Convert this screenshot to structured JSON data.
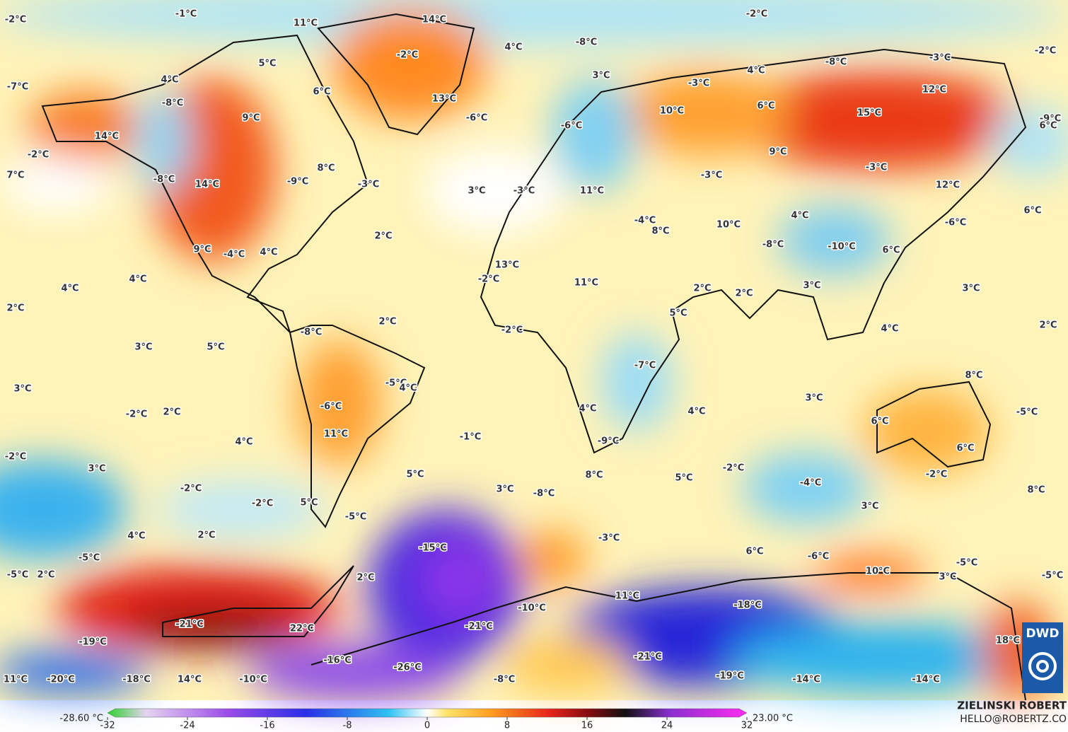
{
  "map": {
    "labels": [
      "-2°C",
      "-1°C",
      "11°C",
      "14°C",
      "-2°C",
      "-2°C",
      "-8°C",
      "4°C",
      "-2°C",
      "5°C",
      "-3°C",
      "-8°C",
      "4°C",
      "3°C",
      "-3°C",
      "-7°C",
      "4°C",
      "6°C",
      "13°C",
      "-8°C",
      "12°C",
      "6°C",
      "10°C",
      "15°C",
      "-9°C",
      "6°C",
      "-6°C",
      "9°C",
      "-6°C",
      "14°C",
      "-2°C",
      "9°C",
      "8°C",
      "-3°C",
      "-3°C",
      "7°C",
      "-8°C",
      "14°C",
      "-9°C",
      "-3°C",
      "3°C",
      "-3°C",
      "11°C",
      "12°C",
      "6°C",
      "4°C",
      "-4°C",
      "10°C",
      "8°C",
      "-6°C",
      "2°C",
      "-8°C",
      "-10°C",
      "6°C",
      "9°C",
      "-4°C",
      "4°C",
      "13°C",
      "-2°C",
      "11°C",
      "3°C",
      "3°C",
      "2°C",
      "2°C",
      "4°C",
      "4°C",
      "2°C",
      "5°C",
      "2°C",
      "-8°C",
      "-2°C",
      "4°C",
      "2°C",
      "3°C",
      "5°C",
      "-7°C",
      "8°C",
      "3°C",
      "-5°C",
      "4°C",
      "3°C",
      "-6°C",
      "4°C",
      "4°C",
      "-2°C",
      "2°C",
      "-5°C",
      "6°C",
      "11°C",
      "4°C",
      "-9°C",
      "-1°C",
      "6°C",
      "-2°C",
      "-2°C",
      "3°C",
      "5°C",
      "8°C",
      "5°C",
      "-2°C",
      "-4°C",
      "-2°C",
      "3°C",
      "-8°C",
      "8°C",
      "-2°C",
      "5°C",
      "-5°C",
      "3°C",
      "4°C",
      "2°C",
      "-3°C",
      "-15°C",
      "6°C",
      "-5°C",
      "-6°C",
      "10°C",
      "-5°C",
      "-5°C",
      "2°C",
      "2°C",
      "3°C",
      "-5°C",
      "11°C",
      "-10°C",
      "-18°C",
      "-21°C",
      "22°C",
      "-21°C",
      "-19°C",
      "18°C",
      "-16°C",
      "-26°C",
      "-21°C",
      "11°C",
      "-20°C",
      "-18°C",
      "14°C",
      "-10°C",
      "-8°C",
      "-19°C",
      "-14°C",
      "-14°C"
    ]
  },
  "colorbar": {
    "min_label": "-28.60 °C",
    "max_label": "23.00 °C",
    "ticks": [
      -32,
      -24,
      -16,
      -8,
      0,
      8,
      16,
      24,
      32
    ]
  },
  "credits": {
    "author": "ZIELINSKI ROBERT",
    "email": "HELLO@ROBERTZ.CO",
    "logo": "DWD"
  }
}
